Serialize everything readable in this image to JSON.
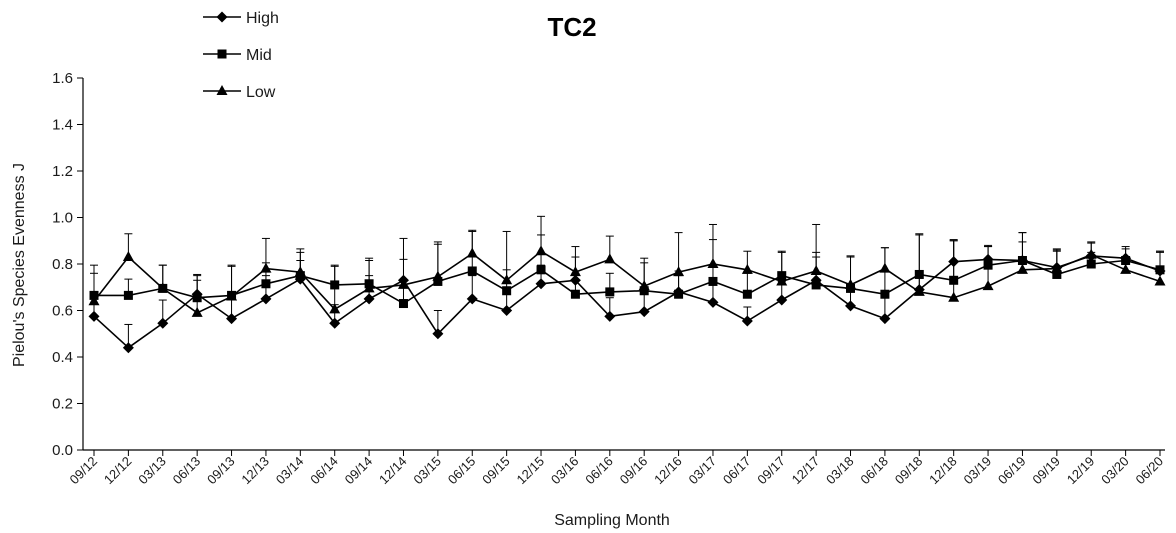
{
  "chart_data": {
    "type": "line",
    "title": "TC2",
    "xlabel": "Sampling Month",
    "ylabel": "Pielou's Species Evenness J",
    "ylim": [
      0,
      1.6
    ],
    "yticks": [
      "0.0",
      "0.2",
      "0.4",
      "0.6",
      "0.8",
      "1.0",
      "1.2",
      "1.4",
      "1.6"
    ],
    "legend_position": "top-left",
    "grid": false,
    "categories": [
      "09/12",
      "12/12",
      "03/13",
      "06/13",
      "09/13",
      "12/13",
      "03/14",
      "06/14",
      "09/14",
      "12/14",
      "03/15",
      "06/15",
      "09/15",
      "12/15",
      "03/16",
      "06/16",
      "09/16",
      "12/16",
      "03/17",
      "06/17",
      "09/17",
      "12/17",
      "03/18",
      "06/18",
      "09/18",
      "12/18",
      "03/19",
      "06/19",
      "09/19",
      "12/19",
      "03/20",
      "06/20"
    ],
    "series": [
      {
        "name": "High",
        "marker": "diamond",
        "values": [
          0.575,
          0.44,
          0.545,
          0.67,
          0.565,
          0.65,
          0.735,
          0.545,
          0.65,
          0.73,
          0.5,
          0.65,
          0.6,
          0.715,
          0.73,
          0.575,
          0.595,
          0.68,
          0.635,
          0.555,
          0.645,
          0.73,
          0.62,
          0.565,
          0.69,
          0.81,
          0.82,
          0.815,
          0.785,
          0.835,
          0.825,
          0.77
        ],
        "errors": [
          0.1,
          0.1,
          0.1,
          0.08,
          0.1,
          0.1,
          0.08,
          0.08,
          0.1,
          0.09,
          0.1,
          0.1,
          0.09,
          0.08,
          0.1,
          0.08,
          0.08,
          0.09,
          0.09,
          0.06,
          0.08,
          0.1,
          0.08,
          0.09,
          0.08,
          0.09,
          0.06,
          0.08,
          0.08,
          0.06,
          0.05,
          0.08
        ]
      },
      {
        "name": "Mid",
        "marker": "square",
        "values": [
          0.665,
          0.665,
          0.695,
          0.655,
          0.665,
          0.715,
          0.75,
          0.71,
          0.715,
          0.63,
          0.725,
          0.77,
          0.685,
          0.775,
          0.67,
          0.68,
          0.685,
          0.67,
          0.725,
          0.67,
          0.75,
          0.71,
          0.695,
          0.67,
          0.755,
          0.73,
          0.795,
          0.815,
          0.755,
          0.8,
          0.815,
          0.775
        ],
        "errors": [
          0.13,
          0.07,
          0.1,
          0.1,
          0.13,
          0.09,
          0.1,
          0.08,
          0.11,
          0.1,
          0.16,
          0.17,
          0.09,
          0.15,
          0.09,
          0.08,
          0.12,
          0.08,
          0.18,
          0.09,
          0.1,
          0.14,
          0.14,
          0.2,
          0.17,
          0.17,
          0.08,
          0.12,
          0.1,
          0.05,
          0.05,
          0.08
        ]
      },
      {
        "name": "Low",
        "marker": "triangle",
        "values": [
          0.64,
          0.83,
          0.695,
          0.59,
          0.66,
          0.78,
          0.765,
          0.605,
          0.695,
          0.71,
          0.745,
          0.845,
          0.73,
          0.855,
          0.765,
          0.82,
          0.705,
          0.765,
          0.8,
          0.775,
          0.725,
          0.77,
          0.71,
          0.78,
          0.68,
          0.655,
          0.705,
          0.775,
          0.78,
          0.84,
          0.775,
          0.725
        ],
        "errors": [
          0.12,
          0.1,
          0.1,
          0.14,
          0.13,
          0.13,
          0.1,
          0.19,
          0.12,
          0.2,
          0.15,
          0.1,
          0.21,
          0.15,
          0.11,
          0.1,
          0.12,
          0.17,
          0.17,
          0.08,
          0.13,
          0.2,
          0.12,
          0.09,
          0.25,
          0.25,
          0.17,
          0.16,
          0.08,
          0.05,
          0.05,
          0.13
        ]
      }
    ]
  }
}
